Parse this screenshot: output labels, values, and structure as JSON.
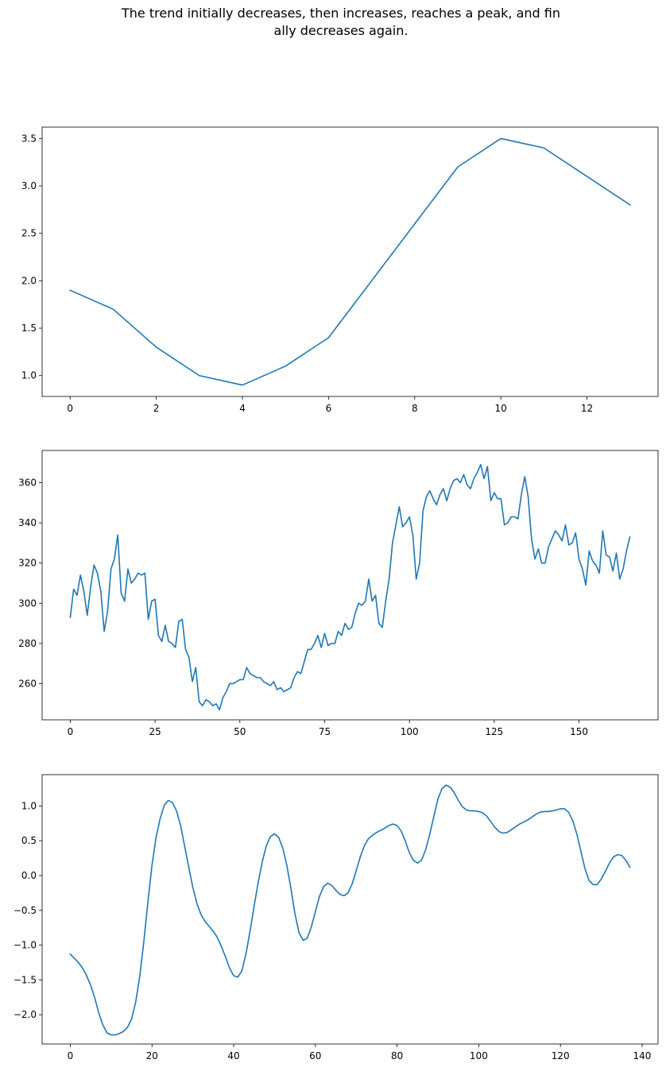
{
  "figure": {
    "title_lines": [
      "The trend initially decreases, then increases, reaches a peak, and fin",
      "ally decreases again."
    ]
  },
  "chart_data": [
    {
      "type": "line",
      "color": "#1f77b4",
      "xlim": [
        -0.65,
        13.65
      ],
      "ylim": [
        0.78,
        3.62
      ],
      "xticks": [
        0,
        2,
        4,
        6,
        8,
        10,
        12
      ],
      "xtick_labels": [
        "0",
        "2",
        "4",
        "6",
        "8",
        "10",
        "12"
      ],
      "yticks": [
        1.0,
        1.5,
        2.0,
        2.5,
        3.0,
        3.5
      ],
      "ytick_labels": [
        "1.0",
        "1.5",
        "2.0",
        "2.5",
        "3.0",
        "3.5"
      ],
      "x": [
        0,
        1,
        2,
        3,
        4,
        5,
        6,
        7,
        8,
        9,
        10,
        11,
        12,
        13
      ],
      "y": [
        1.9,
        1.7,
        1.3,
        1.0,
        0.9,
        1.1,
        1.4,
        2.0,
        2.6,
        3.2,
        3.5,
        3.4,
        3.1,
        2.8
      ]
    },
    {
      "type": "line",
      "color": "#1f77b4",
      "xlim": [
        -8.3,
        173.3
      ],
      "ylim": [
        242,
        376
      ],
      "xticks": [
        0,
        25,
        50,
        75,
        100,
        125,
        150
      ],
      "xtick_labels": [
        "0",
        "25",
        "50",
        "75",
        "100",
        "125",
        "150"
      ],
      "yticks": [
        260,
        280,
        300,
        320,
        340,
        360
      ],
      "ytick_labels": [
        "260",
        "280",
        "300",
        "320",
        "340",
        "360"
      ],
      "x_start": 0,
      "y": [
        293,
        307,
        304,
        314,
        306,
        294,
        308,
        319,
        315,
        306,
        286,
        296,
        317,
        322,
        334,
        305,
        301,
        317,
        310,
        312,
        315,
        314,
        315,
        292,
        301,
        302,
        284,
        281,
        289,
        281,
        280,
        278,
        291,
        292,
        277,
        273,
        261,
        268,
        251,
        249,
        252,
        251,
        249,
        250,
        247,
        253,
        256,
        260,
        260,
        261,
        262,
        262,
        268,
        265,
        264,
        263,
        263,
        261,
        260,
        259,
        261,
        257,
        258,
        256,
        257,
        258,
        263,
        266,
        265,
        271,
        277,
        277,
        280,
        284,
        278,
        285,
        279,
        280,
        280,
        286,
        284,
        290,
        287,
        288,
        295,
        300,
        299,
        301,
        312,
        301,
        304,
        290,
        288,
        301,
        312,
        330,
        339,
        348,
        338,
        340,
        343,
        334,
        312,
        320,
        346,
        353,
        356,
        352,
        349,
        354,
        357,
        351,
        357,
        361,
        362,
        360,
        364,
        359,
        357,
        362,
        365,
        369,
        362,
        368,
        351,
        355,
        352,
        352,
        339,
        340,
        343,
        343,
        342,
        354,
        363,
        353,
        332,
        322,
        327,
        320,
        320,
        328,
        332,
        336,
        334,
        331,
        339,
        329,
        330,
        335,
        322,
        317,
        309,
        326,
        321,
        319,
        315,
        336,
        324,
        323,
        316,
        325,
        312,
        317,
        326,
        333
      ]
    },
    {
      "type": "line",
      "color": "#1f77b4",
      "xlim": [
        -6.9,
        143.9
      ],
      "ylim": [
        -2.42,
        1.45
      ],
      "xticks": [
        0,
        20,
        40,
        60,
        80,
        100,
        120,
        140
      ],
      "xtick_labels": [
        "0",
        "20",
        "40",
        "60",
        "80",
        "100",
        "120",
        "140"
      ],
      "yticks": [
        -2.0,
        -1.5,
        -1.0,
        -0.5,
        0.0,
        0.5,
        1.0
      ],
      "ytick_labels": [
        "−2.0",
        "−1.5",
        "−1.0",
        "−0.5",
        "0.0",
        "0.5",
        "1.0"
      ],
      "x_start": 0,
      "y": [
        -1.13,
        -1.19,
        -1.25,
        -1.33,
        -1.44,
        -1.58,
        -1.76,
        -1.98,
        -2.15,
        -2.26,
        -2.29,
        -2.29,
        -2.27,
        -2.24,
        -2.18,
        -2.06,
        -1.82,
        -1.45,
        -0.95,
        -0.38,
        0.15,
        0.55,
        0.82,
        1.01,
        1.08,
        1.05,
        0.93,
        0.72,
        0.42,
        0.12,
        -0.17,
        -0.4,
        -0.56,
        -0.66,
        -0.73,
        -0.8,
        -0.89,
        -1.02,
        -1.17,
        -1.33,
        -1.44,
        -1.46,
        -1.37,
        -1.13,
        -0.8,
        -0.44,
        -0.1,
        0.2,
        0.43,
        0.56,
        0.6,
        0.55,
        0.4,
        0.15,
        -0.18,
        -0.55,
        -0.82,
        -0.93,
        -0.9,
        -0.74,
        -0.52,
        -0.3,
        -0.16,
        -0.11,
        -0.14,
        -0.21,
        -0.27,
        -0.29,
        -0.25,
        -0.12,
        0.07,
        0.27,
        0.43,
        0.53,
        0.58,
        0.62,
        0.65,
        0.68,
        0.72,
        0.74,
        0.72,
        0.64,
        0.5,
        0.33,
        0.22,
        0.18,
        0.22,
        0.37,
        0.59,
        0.85,
        1.1,
        1.25,
        1.3,
        1.27,
        1.19,
        1.08,
        0.99,
        0.94,
        0.93,
        0.93,
        0.92,
        0.9,
        0.85,
        0.77,
        0.69,
        0.63,
        0.61,
        0.62,
        0.66,
        0.7,
        0.74,
        0.77,
        0.8,
        0.84,
        0.88,
        0.91,
        0.92,
        0.92,
        0.93,
        0.94,
        0.96,
        0.96,
        0.91,
        0.79,
        0.6,
        0.35,
        0.1,
        -0.07,
        -0.13,
        -0.13,
        -0.05,
        0.06,
        0.18,
        0.27,
        0.3,
        0.29,
        0.22,
        0.12
      ]
    }
  ]
}
